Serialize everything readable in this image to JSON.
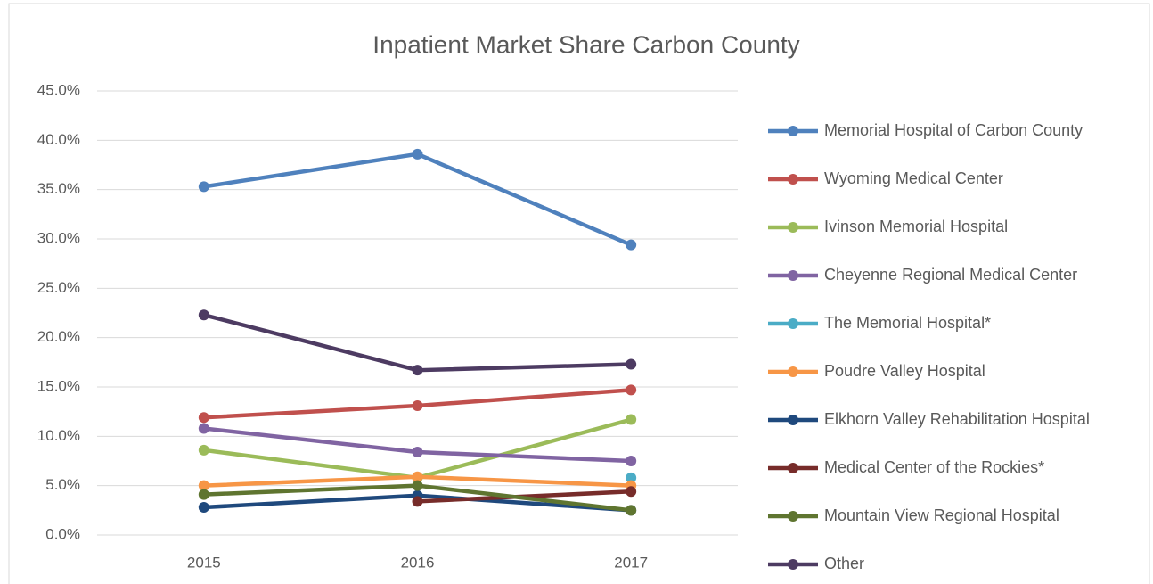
{
  "chart_data": {
    "type": "line",
    "title": "Inpatient Market Share Carbon County",
    "categories": [
      "2015",
      "2016",
      "2017"
    ],
    "series": [
      {
        "name": "Memorial Hospital of Carbon County",
        "color": "#4f81bd",
        "values": [
          35.3,
          38.6,
          29.4
        ]
      },
      {
        "name": "Wyoming Medical Center",
        "color": "#c0504d",
        "values": [
          11.9,
          13.1,
          14.7
        ]
      },
      {
        "name": "Ivinson Memorial Hospital",
        "color": "#9bbb59",
        "values": [
          8.6,
          5.8,
          11.7
        ]
      },
      {
        "name": "Cheyenne Regional Medical Center",
        "color": "#8064a2",
        "values": [
          10.8,
          8.4,
          7.5
        ]
      },
      {
        "name": "The Memorial Hospital*",
        "color": "#4bacc6",
        "values": [
          null,
          null,
          5.8
        ]
      },
      {
        "name": "Poudre Valley Hospital",
        "color": "#f79646",
        "values": [
          5.0,
          5.9,
          5.0
        ]
      },
      {
        "name": "Elkhorn Valley Rehabilitation Hospital",
        "color": "#1f497d",
        "values": [
          2.8,
          4.0,
          2.5
        ]
      },
      {
        "name": "Medical Center of the Rockies*",
        "color": "#772c2a",
        "values": [
          null,
          3.4,
          4.4
        ]
      },
      {
        "name": "Mountain View Regional Hospital",
        "color": "#5f7530",
        "values": [
          4.1,
          5.0,
          2.5
        ]
      },
      {
        "name": "Other",
        "color": "#4d3b62",
        "values": [
          22.3,
          16.7,
          17.3
        ]
      }
    ],
    "ylim": [
      0,
      45
    ],
    "yticks": [
      {
        "value": 0,
        "label": "0.0%"
      },
      {
        "value": 5,
        "label": "5.0%"
      },
      {
        "value": 10,
        "label": "10.0%"
      },
      {
        "value": 15,
        "label": "15.0%"
      },
      {
        "value": 20,
        "label": "20.0%"
      },
      {
        "value": 25,
        "label": "25.0%"
      },
      {
        "value": 30,
        "label": "30.0%"
      },
      {
        "value": 35,
        "label": "35.0%"
      },
      {
        "value": 40,
        "label": "40.0%"
      },
      {
        "value": 45,
        "label": "45.0%"
      }
    ],
    "grid": true,
    "legend": "right"
  }
}
